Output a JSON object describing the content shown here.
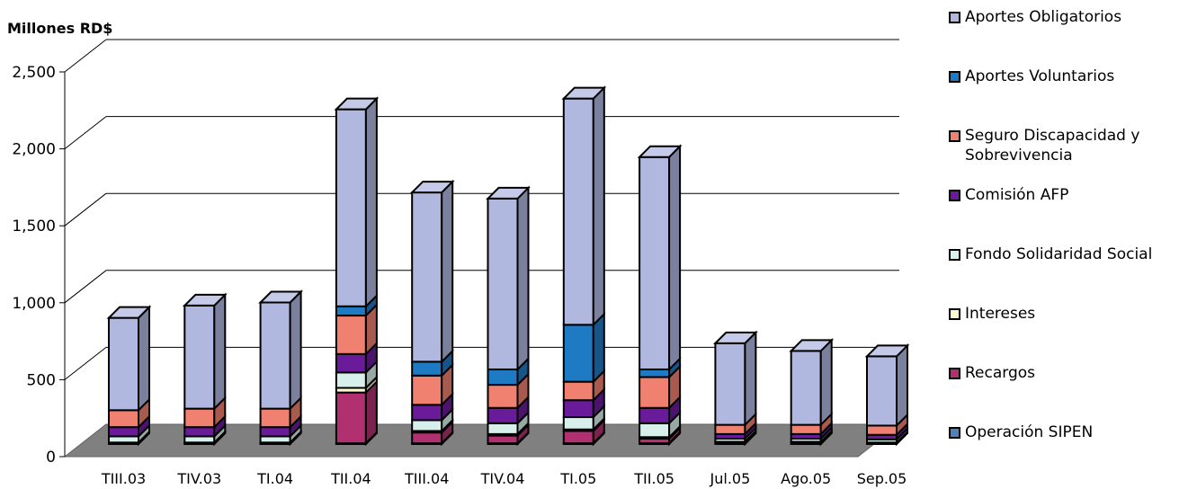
{
  "chart_data": {
    "type": "bar",
    "stacked": true,
    "three_d": true,
    "ylabel": "Millones RD$",
    "ylim": [
      0,
      2500
    ],
    "yticks": [
      0,
      500,
      1000,
      1500,
      2000,
      2500
    ],
    "ytick_labels": [
      "0",
      "500",
      "1,000",
      "1,500",
      "2,000",
      "2,500"
    ],
    "grid": true,
    "legend_position": "right",
    "categories": [
      "TIII.03",
      "TIV.03",
      "TI.04",
      "TII.04",
      "TIII.04",
      "TIV.04",
      "TI.05",
      "TII.05",
      "Jul.05",
      "Ago.05",
      "Sep.05"
    ],
    "series": [
      {
        "name": "Operación SIPEN",
        "color": "#4f81bd",
        "values": [
          3,
          3,
          3,
          5,
          5,
          5,
          5,
          5,
          2,
          2,
          2
        ]
      },
      {
        "name": "Recargos",
        "color": "#b03070",
        "values": [
          5,
          5,
          5,
          330,
          70,
          50,
          80,
          30,
          10,
          10,
          5
        ]
      },
      {
        "name": "Intereses",
        "color": "#fffacd",
        "values": [
          2,
          2,
          2,
          30,
          10,
          10,
          10,
          10,
          3,
          3,
          3
        ]
      },
      {
        "name": "Fondo Solidaridad Social",
        "color": "#d8f0ec",
        "values": [
          40,
          40,
          40,
          100,
          70,
          70,
          80,
          90,
          20,
          20,
          20
        ]
      },
      {
        "name": "Comisión AFP",
        "color": "#6a1b9a",
        "values": [
          60,
          60,
          60,
          120,
          100,
          100,
          110,
          100,
          30,
          30,
          30
        ]
      },
      {
        "name": "Seguro Discapacidad y Sobrevivencia",
        "color": "#f08070",
        "values": [
          110,
          120,
          120,
          250,
          190,
          150,
          120,
          200,
          60,
          60,
          60
        ]
      },
      {
        "name": "Aportes Voluntarios",
        "color": "#1f7ac4",
        "values": [
          0,
          0,
          0,
          60,
          90,
          100,
          370,
          50,
          0,
          0,
          0
        ]
      },
      {
        "name": "Aportes Obligatorios",
        "color": "#b0b8e0",
        "values": [
          600,
          670,
          690,
          1280,
          1100,
          1110,
          1470,
          1380,
          530,
          480,
          450
        ]
      }
    ]
  },
  "legend": {
    "items": [
      {
        "label": "Aportes Obligatorios",
        "color": "#b0b8e0"
      },
      {
        "label": "Aportes Voluntarios",
        "color": "#1f7ac4"
      },
      {
        "label": "Seguro Discapacidad y Sobrevivencia",
        "color": "#f08070"
      },
      {
        "label": "Comisión AFP",
        "color": "#6a1b9a"
      },
      {
        "label": "Fondo Solidaridad Social",
        "color": "#d8f0ec"
      },
      {
        "label": "Intereses",
        "color": "#fffacd"
      },
      {
        "label": "Recargos",
        "color": "#b03070"
      },
      {
        "label": "Operación SIPEN",
        "color": "#4f81bd"
      }
    ]
  }
}
